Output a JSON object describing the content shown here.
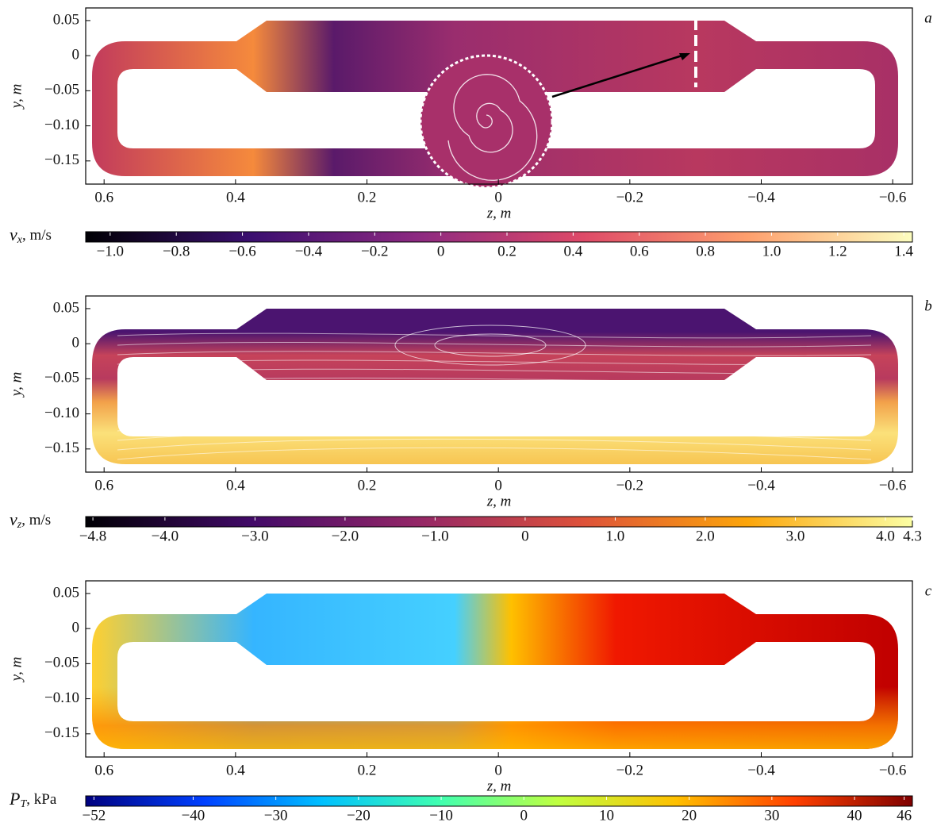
{
  "chart_data": [
    {
      "type": "heatmap",
      "panel_label": "a",
      "xlabel": "z, m",
      "ylabel": "y, m",
      "xlim": [
        0.628,
        -0.63
      ],
      "ylim": [
        -0.183,
        0.068
      ],
      "xticks": [
        0.6,
        0.4,
        0.2,
        0,
        {
          "value": -0.2,
          "label": "−0.2"
        },
        {
          "value": -0.4,
          "label": "−0.4"
        },
        {
          "value": -0.6,
          "label": "−0.6"
        }
      ],
      "yticks": [
        {
          "value": 0.05,
          "label": "0.05"
        },
        0,
        {
          "value": -0.05,
          "label": "−0.05"
        },
        {
          "value": -0.1,
          "label": "−0.10"
        },
        {
          "value": -0.15,
          "label": "−0.15"
        }
      ],
      "colorbar": {
        "label_symbol": "v",
        "label_subscript": "x",
        "label_unit": ", m/s",
        "lim": [
          -1.074,
          1.426
        ],
        "ticks": [
          {
            "value": -1.0,
            "label": "−1.0"
          },
          {
            "value": -0.8,
            "label": "−0.8"
          },
          {
            "value": -0.6,
            "label": "−0.6"
          },
          {
            "value": -0.4,
            "label": "−0.4"
          },
          {
            "value": -0.2,
            "label": "−0.2"
          },
          0,
          0.2,
          0.4,
          0.6,
          0.8,
          {
            "value": 1.0,
            "label": "1.0"
          },
          1.2,
          1.4
        ],
        "colormap": [
          "#000004",
          "#3b0f70",
          "#8c2981",
          "#de4968",
          "#fe9f6d",
          "#fcfdbf"
        ]
      }
    },
    {
      "type": "heatmap",
      "panel_label": "b",
      "xlabel": "z, m",
      "ylabel": "y, m",
      "xlim": [
        0.628,
        -0.63
      ],
      "ylim": [
        -0.183,
        0.068
      ],
      "xticks": [
        0.6,
        0.4,
        0.2,
        0,
        {
          "value": -0.2,
          "label": "−0.2"
        },
        {
          "value": -0.4,
          "label": "−0.4"
        },
        {
          "value": -0.6,
          "label": "−0.6"
        }
      ],
      "yticks": [
        {
          "value": 0.05,
          "label": "0.05"
        },
        0,
        {
          "value": -0.05,
          "label": "−0.05"
        },
        {
          "value": -0.1,
          "label": "−0.10"
        },
        {
          "value": -0.15,
          "label": "−0.15"
        }
      ],
      "colorbar": {
        "label_symbol": "v",
        "label_subscript": "z",
        "label_unit": ", m/s",
        "lim": [
          -4.88,
          4.3
        ],
        "ticks": [
          {
            "value": -4.8,
            "label": "−4.8"
          },
          {
            "value": -4.0,
            "label": "−4.0"
          },
          {
            "value": -3.0,
            "label": "−3.0"
          },
          {
            "value": -2.0,
            "label": "−2.0"
          },
          {
            "value": -1.0,
            "label": "−1.0"
          },
          0,
          {
            "value": 1.0,
            "label": "1.0"
          },
          {
            "value": 2.0,
            "label": "2.0"
          },
          {
            "value": 3.0,
            "label": "3.0"
          },
          {
            "value": 4.0,
            "label": "4.0"
          },
          4.3
        ],
        "colormap": [
          "#000004",
          "#420a68",
          "#932667",
          "#dd513a",
          "#fca50a",
          "#fcffa4"
        ]
      }
    },
    {
      "type": "heatmap",
      "panel_label": "c",
      "xlabel": "z, m",
      "ylabel": "y, m",
      "xlim": [
        0.628,
        -0.63
      ],
      "ylim": [
        -0.183,
        0.068
      ],
      "xticks": [
        0.6,
        0.4,
        0.2,
        0,
        {
          "value": -0.2,
          "label": "−0.2"
        },
        {
          "value": -0.4,
          "label": "−0.4"
        },
        {
          "value": -0.6,
          "label": "−0.6"
        }
      ],
      "yticks": [
        {
          "value": 0.05,
          "label": "0.05"
        },
        0,
        {
          "value": -0.05,
          "label": "−0.05"
        },
        {
          "value": -0.1,
          "label": "−0.10"
        },
        {
          "value": -0.15,
          "label": "−0.15"
        }
      ],
      "colorbar": {
        "label_symbol": "P",
        "label_subscript": "T",
        "label_unit": ", kPa",
        "lim": [
          -53,
          47
        ],
        "ticks": [
          {
            "value": -52,
            "label": "−52"
          },
          {
            "value": -40,
            "label": "−40"
          },
          {
            "value": -30,
            "label": "−30"
          },
          {
            "value": -20,
            "label": "−20"
          },
          {
            "value": -10,
            "label": "−10"
          },
          0,
          10,
          20,
          30,
          40,
          46
        ],
        "colormap": [
          "#00007f",
          "#0040ff",
          "#00c0ff",
          "#40ffb0",
          "#c0ff40",
          "#ffc000",
          "#ff4000",
          "#7f0000"
        ]
      }
    }
  ]
}
